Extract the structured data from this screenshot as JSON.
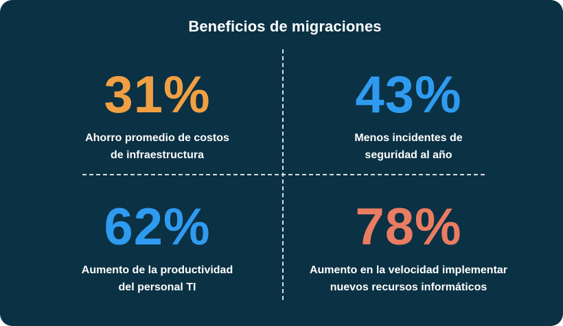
{
  "title": "Beneficios de migraciones",
  "colors": {
    "background": "#0b3144",
    "orange": "#f0a043",
    "blue": "#2f9bf0",
    "salmon": "#ea7c62"
  },
  "stats": [
    {
      "value": "31%",
      "label": "Ahorro promedio de costos\nde infraestructura",
      "color": "#f0a043"
    },
    {
      "value": "43%",
      "label": "Menos incidentes de\nseguridad al año",
      "color": "#2f9bf0"
    },
    {
      "value": "62%",
      "label": "Aumento de la productividad\ndel personal TI",
      "color": "#2f9bf0"
    },
    {
      "value": "78%",
      "label": "Aumento en la velocidad implementar\nnuevos recursos informáticos",
      "color": "#ea7c62"
    }
  ]
}
